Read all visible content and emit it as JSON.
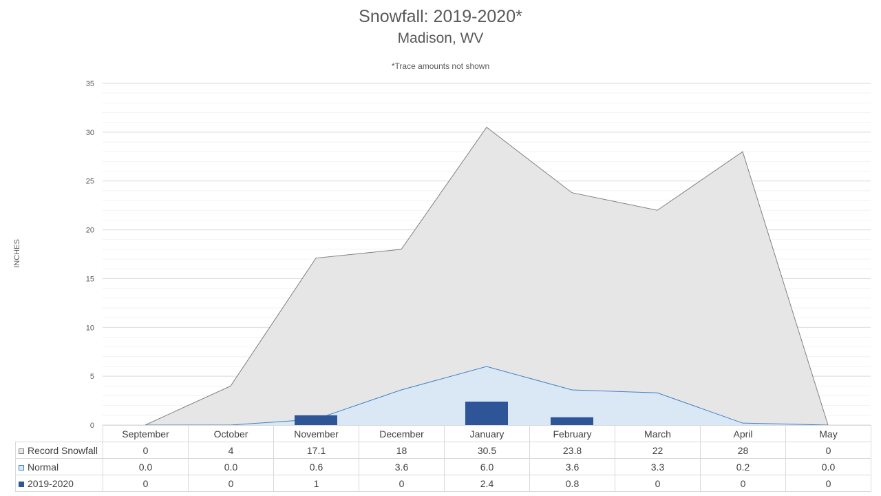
{
  "chart_data": {
    "type": "area",
    "title": "Snowfall: 2019-2020*",
    "subtitle": "Madison, WV",
    "note": "*Trace amounts not shown",
    "ylabel": "INCHES",
    "ylim": [
      0,
      35
    ],
    "yticks": [
      "0",
      "5",
      "10",
      "15",
      "20",
      "25",
      "30",
      "35"
    ],
    "grid": true,
    "legend": "data table",
    "categories": [
      "September",
      "October",
      "November",
      "December",
      "January",
      "February",
      "March",
      "April",
      "May"
    ],
    "series": [
      {
        "name": "Record Snowfall",
        "type": "area",
        "color": "#e6e6e6",
        "line": "#808080",
        "values": [
          0,
          4,
          17.1,
          18,
          30.5,
          23.8,
          22,
          28,
          0
        ],
        "labels": [
          "0",
          "4",
          "17.1",
          "18",
          "30.5",
          "23.8",
          "22",
          "28",
          "0"
        ]
      },
      {
        "name": "Normal",
        "type": "area",
        "color": "#dae8f6",
        "line": "#3f7fc4",
        "values": [
          0.0,
          0.0,
          0.6,
          3.6,
          6.0,
          3.6,
          3.3,
          0.2,
          0.0
        ],
        "labels": [
          "0.0",
          "0.0",
          "0.6",
          "3.6",
          "6.0",
          "3.6",
          "3.3",
          "0.2",
          "0.0"
        ]
      },
      {
        "name": "2019-2020",
        "type": "bar",
        "color": "#2e5597",
        "values": [
          0,
          0,
          1,
          0,
          2.4,
          0.8,
          0,
          0,
          0
        ],
        "labels": [
          "0",
          "0",
          "1",
          "0",
          "2.4",
          "0.8",
          "0",
          "0",
          "0"
        ]
      }
    ]
  }
}
